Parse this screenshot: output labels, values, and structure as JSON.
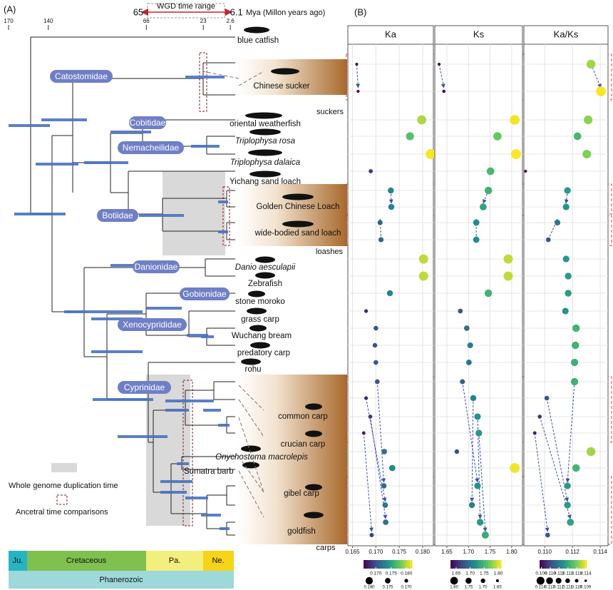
{
  "panel_a": {
    "label": "(A)",
    "wgd_title": "WGD time range",
    "wgd_range": [
      65,
      6.1
    ],
    "time_unit": "Mya (Millon years ago)",
    "xlim": [
      170,
      0
    ],
    "time_ticks": [
      170,
      140,
      66,
      23,
      2.6
    ],
    "species": [
      "blue catfish",
      "Chinese sucker",
      "oriental weatherfish",
      "Triplophysa rosa",
      "Triplophysa dalaica",
      "Yichang sand loach",
      "Golden Chinese Loach",
      "wide-bodied sand loach",
      "Danio aesculapii",
      "Zebrafish",
      "stone moroko",
      "grass carp",
      "Wuchang bream",
      "predatory carp",
      "rohu",
      "common carp",
      "crucian carp",
      "Onychostoma macrolepis",
      "Sumatra barb",
      "gibel carp",
      "goldfish"
    ],
    "families": [
      "Catostomidae",
      "Cobitidae",
      "Nemacheilidae",
      "Botiidae",
      "Danionidae",
      "Gobionidae",
      "Xenocyprididae",
      "Cyprinidae"
    ],
    "groups": [
      "suckers",
      "loashes",
      "carps"
    ],
    "legend": [
      "Whole genome duplication time",
      "Ancetral time comparisons"
    ],
    "periods": [
      "Ju.",
      "Cretaceous",
      "Pa.",
      "Ne."
    ],
    "eon": "Phanerozoic"
  },
  "panel_b": {
    "label": "(B)"
  },
  "chart_data": [
    {
      "type": "scatter",
      "title": "Ka",
      "values": [
        0.1659,
        0.1662,
        0.1798,
        0.1773,
        0.1817,
        0.1689,
        0.1732,
        0.1733,
        0.1709,
        0.1711,
        0.1802,
        0.1802,
        0.173,
        0.1679,
        0.17,
        0.1698,
        0.17,
        0.1703,
        0.1679,
        0.1688,
        0.1674,
        0.1718,
        0.1735,
        0.1717,
        0.172,
        0.1721,
        0.1691
      ],
      "xlim": [
        0.164,
        0.1823
      ],
      "xticks": [
        0.165,
        {
          "value": 0.17,
          "label": "0.170"
        },
        0.175,
        {
          "value": 0.18,
          "label": "0.180"
        }
      ],
      "grid": true,
      "colorbar": {
        "lim": [
          0.166,
          0.1818
        ],
        "ticks": [
          {
            "value": 0.17,
            "label": "0.170"
          },
          0.175,
          {
            "value": 0.18,
            "label": "0.180"
          }
        ]
      },
      "size_legend": [
        {
          "value": 0.18,
          "label": "0.180"
        },
        0.175,
        {
          "value": 0.17,
          "label": "0.170"
        }
      ]
    },
    {
      "type": "scatter",
      "title": "Ks",
      "values": [
        1.632,
        1.643,
        1.807,
        1.767,
        1.81,
        1.751,
        1.746,
        1.734,
        1.718,
        1.718,
        1.792,
        1.792,
        1.746,
        1.681,
        1.696,
        1.704,
        1.701,
        1.686,
        1.711,
        1.721,
        1.724,
        1.673,
        1.807,
        1.721,
        1.708,
        1.727,
        1.739
      ],
      "xlim": [
        1.622,
        1.825
      ],
      "xticks": [
        1.65,
        {
          "value": 1.7,
          "label": "1.70"
        },
        1.75,
        {
          "value": 1.8,
          "label": "1.80"
        }
      ],
      "grid": true,
      "colorbar": {
        "lim": [
          1.63,
          1.81
        ],
        "ticks": [
          1.65,
          {
            "value": 1.7,
            "label": "1.70"
          },
          1.75,
          {
            "value": 1.8,
            "label": "1.80"
          }
        ]
      },
      "size_legend": [
        {
          "value": 1.8,
          "label": "1.80"
        },
        1.75,
        {
          "value": 1.7,
          "label": "1.70"
        },
        1.65
      ]
    },
    {
      "type": "scatter",
      "title": "Ka/Ks",
      "values": [
        0.11333,
        0.11405,
        0.11313,
        0.11236,
        0.11303,
        0.10862,
        0.11164,
        0.11154,
        0.11092,
        0.11026,
        0.11154,
        0.11169,
        0.11169,
        0.11149,
        0.11226,
        0.11221,
        0.11215,
        0.11215,
        0.11015,
        0.10964,
        0.10928,
        0.11333,
        0.11226,
        0.11164,
        0.11164,
        0.11185,
        0.11021
      ],
      "xlim": [
        0.1085,
        0.11456
      ],
      "xticks": [
        {
          "value": 0.11,
          "label": "0.110"
        },
        0.112,
        0.114
      ],
      "grid": true,
      "colorbar": {
        "lim": [
          0.1088,
          0.1141
        ],
        "ticks": [
          0.109,
          {
            "value": 0.11,
            "label": "0.110"
          },
          0.111,
          0.112,
          0.113,
          0.114
        ]
      },
      "size_legend": [
        0.114,
        0.113,
        0.112,
        0.111,
        {
          "value": 0.11,
          "label": "0.110"
        },
        0.109
      ]
    }
  ]
}
